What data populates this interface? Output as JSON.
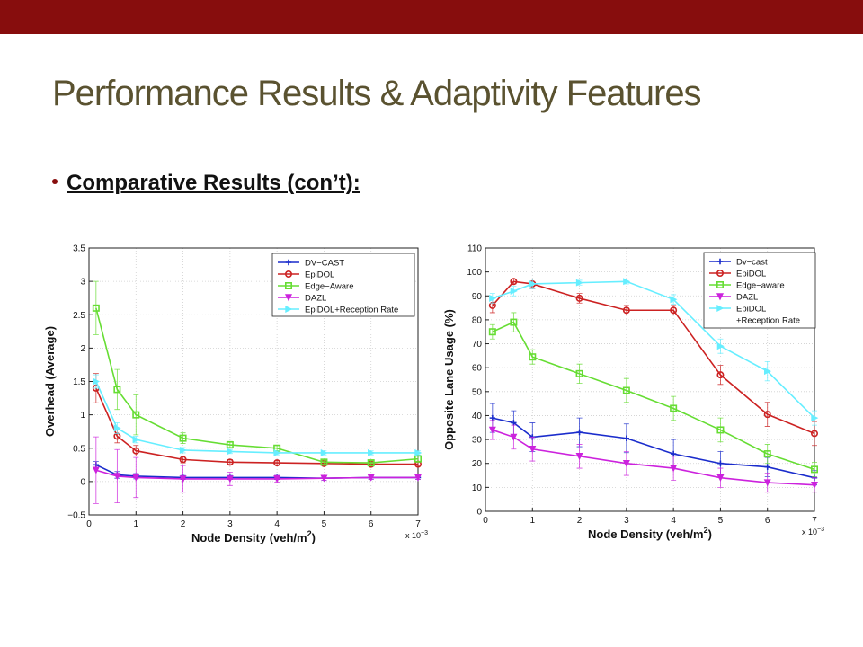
{
  "slide": {
    "title": "Performance Results & Adaptivity Features",
    "bullet": "Comparative Results (con’t):",
    "accent_color": "#870d0d",
    "title_color": "#5a5230"
  },
  "chart_data": [
    {
      "type": "line",
      "xlabel": "Node Density (veh/m",
      "xlabel_sup": "2",
      "ylabel": "Overhead (Average)",
      "x_multiplier": "x 10",
      "x_multiplier_exp": "−3",
      "xlim": [
        0,
        7
      ],
      "ylim": [
        -0.5,
        3.5
      ],
      "xticks": [
        0,
        1,
        2,
        3,
        4,
        5,
        6,
        7
      ],
      "yticks": [
        -0.5,
        0,
        0.5,
        1,
        1.5,
        2,
        2.5,
        3,
        3.5
      ],
      "ytick_labels": [
        "−0.5",
        "0",
        "0.5",
        "1",
        "1.5",
        "2",
        "2.5",
        "3",
        "3.5"
      ],
      "grid": true,
      "legend_position": "top-right",
      "x": [
        0.15,
        0.6,
        1,
        2,
        3,
        4,
        5,
        6,
        7
      ],
      "series": [
        {
          "name": "DV−CAST",
          "color": "#1a2ccc",
          "marker": "plus",
          "values": [
            0.25,
            0.1,
            0.08,
            0.06,
            0.06,
            0.06,
            0.05,
            0.06,
            0.06
          ],
          "err": [
            0.05,
            0.05,
            0.04,
            0.03,
            0.03,
            0.03,
            0.03,
            0.03,
            0.03
          ]
        },
        {
          "name": "EpiDOL",
          "color": "#cc2222",
          "marker": "circle",
          "values": [
            1.4,
            0.68,
            0.46,
            0.33,
            0.29,
            0.28,
            0.27,
            0.26,
            0.26
          ],
          "err": [
            0.22,
            0.1,
            0.08,
            0.05,
            0.04,
            0.03,
            0.03,
            0.03,
            0.03
          ]
        },
        {
          "name": "Edge−Aware",
          "color": "#66dd33",
          "marker": "square",
          "values": [
            2.6,
            1.38,
            1.0,
            0.65,
            0.55,
            0.5,
            0.29,
            0.28,
            0.34
          ],
          "err": [
            0.4,
            0.3,
            0.3,
            0.08,
            0.05,
            0.04,
            0.03,
            0.03,
            0.05
          ]
        },
        {
          "name": "DAZL",
          "color": "#cc22dd",
          "marker": "triangle-down",
          "values": [
            0.17,
            0.08,
            0.06,
            0.04,
            0.04,
            0.04,
            0.05,
            0.06,
            0.06
          ],
          "err": [
            0.5,
            0.4,
            0.3,
            0.2,
            0.1,
            0.05,
            0.03,
            0.03,
            0.03
          ]
        },
        {
          "name": "EpiDOL+Reception Rate",
          "color": "#66eeff",
          "marker": "triangle-right",
          "values": [
            1.5,
            0.8,
            0.63,
            0.47,
            0.45,
            0.43,
            0.43,
            0.43,
            0.43
          ],
          "err": [
            0.1,
            0.08,
            0.05,
            0.04,
            0.03,
            0.03,
            0.03,
            0.03,
            0.03
          ]
        }
      ]
    },
    {
      "type": "line",
      "xlabel": "Node Density (veh/m",
      "xlabel_sup": "2",
      "ylabel": "Opposite Lane Usage (%)",
      "x_multiplier": "x 10",
      "x_multiplier_exp": "−3",
      "xlim": [
        0,
        7
      ],
      "ylim": [
        0,
        110
      ],
      "xticks": [
        0,
        1,
        2,
        3,
        4,
        5,
        6,
        7
      ],
      "yticks": [
        0,
        10,
        20,
        30,
        40,
        50,
        60,
        70,
        80,
        90,
        100,
        110
      ],
      "ytick_labels": [
        "0",
        "10",
        "20",
        "30",
        "40",
        "50",
        "60",
        "70",
        "80",
        "90",
        "100",
        "110"
      ],
      "grid": true,
      "legend_position": "top-right",
      "x": [
        0.15,
        0.6,
        1,
        2,
        3,
        4,
        5,
        6,
        7
      ],
      "series": [
        {
          "name": "Dv−cast",
          "color": "#1a2ccc",
          "marker": "plus",
          "values": [
            39,
            37,
            31,
            33,
            30.5,
            24,
            20,
            18.5,
            14
          ],
          "err": [
            6,
            5,
            6,
            6,
            6,
            6,
            5,
            4,
            3
          ]
        },
        {
          "name": "EpiDOL",
          "color": "#cc2222",
          "marker": "circle",
          "values": [
            86,
            96,
            95,
            89,
            84,
            84,
            57,
            40.5,
            32.5
          ],
          "err": [
            3,
            1,
            2,
            2,
            2,
            2,
            4,
            5,
            5
          ]
        },
        {
          "name": "Edge−aware",
          "color": "#66dd33",
          "marker": "square",
          "values": [
            75,
            79,
            64.5,
            57.5,
            50.5,
            43,
            34,
            24,
            17.5
          ],
          "err": [
            3,
            4,
            3,
            4,
            5,
            5,
            5,
            4,
            3
          ]
        },
        {
          "name": "DAZL",
          "color": "#cc22dd",
          "marker": "triangle-down",
          "values": [
            34,
            31,
            26,
            23,
            20,
            18,
            14,
            12,
            11
          ],
          "err": [
            4,
            5,
            5,
            5,
            5,
            5,
            4,
            4,
            3
          ]
        },
        {
          "name": "EpiDOL",
          "name_line2": "+Reception Rate",
          "color": "#66eeff",
          "marker": "triangle-right",
          "values": [
            89,
            92,
            95,
            95.5,
            96,
            88.5,
            69,
            58.5,
            39
          ],
          "err": [
            2,
            2,
            2,
            1,
            1,
            2,
            3,
            4,
            3
          ]
        }
      ]
    }
  ]
}
